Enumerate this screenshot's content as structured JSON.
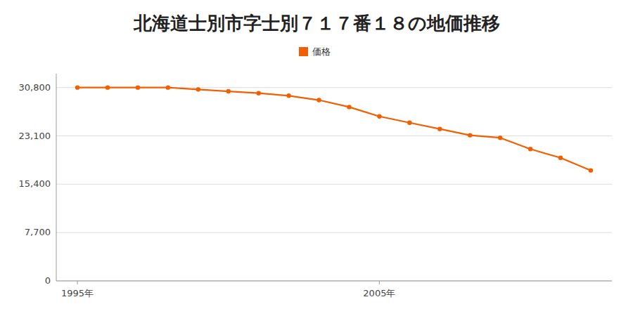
{
  "chart_data": {
    "type": "line",
    "title": "北海道士別市字士別７１７番１８の地価推移",
    "x": [
      1995,
      1996,
      1997,
      1998,
      1999,
      2000,
      2001,
      2002,
      2003,
      2004,
      2005,
      2006,
      2007,
      2008,
      2009,
      2010,
      2011,
      2012
    ],
    "series": [
      {
        "name": "価格",
        "color": "#f06000",
        "marker": "circle",
        "values": [
          30800,
          30800,
          30800,
          30800,
          30500,
          30200,
          29900,
          29500,
          28800,
          27700,
          26200,
          25200,
          24200,
          23200,
          22800,
          21000,
          19600,
          17600
        ]
      }
    ],
    "xlim": [
      1994.3,
      2012.7
    ],
    "xticks": [
      {
        "value": 1995,
        "label": "1995年"
      },
      {
        "value": 2005,
        "label": "2005年"
      }
    ],
    "ylim": [
      0,
      33000
    ],
    "yticks": [
      0,
      {
        "value": 7700,
        "label": "7,700"
      },
      {
        "value": 15400,
        "label": "15,400"
      },
      {
        "value": 23100,
        "label": "23,100"
      },
      {
        "value": 30800,
        "label": "30,800"
      }
    ],
    "grid": true,
    "legend": "top"
  }
}
